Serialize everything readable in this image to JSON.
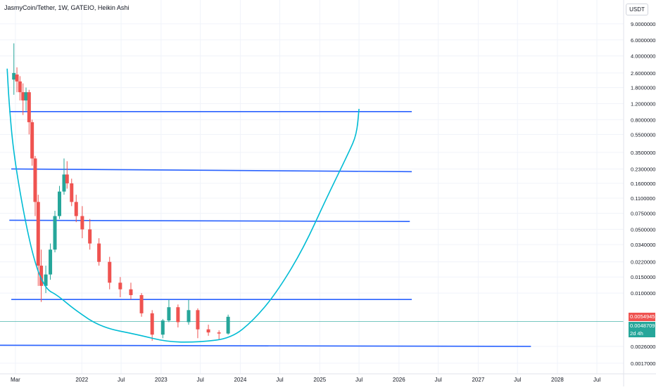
{
  "header": {
    "title": "JasmyCoin/Tether, 1W, GATEIO, Heikin Ashi",
    "currency": "USDT"
  },
  "price_labels": {
    "last_price": "0.0054945",
    "secondary_price": "0.0048709",
    "countdown": "2d 4h"
  },
  "colors": {
    "up": "#26a69a",
    "down": "#ef5350",
    "trendline": "#2962ff",
    "cup_curve": "#00bcd4",
    "last_price_bg": "#ef5350",
    "secondary_bg": "#26a69a"
  },
  "chart_data": {
    "type": "candlestick",
    "title": "JasmyCoin/Tether, 1W, GATEIO, Heikin Ashi",
    "y_scale": "log",
    "ylim": [
      0.0013,
      10
    ],
    "y_ticks": [
      "9.0000000",
      "6.0000000",
      "4.0000000",
      "2.6000000",
      "1.8000000",
      "1.2000000",
      "0.8000000",
      "0.5500000",
      "0.3500000",
      "0.2300000",
      "0.1600000",
      "0.1100000",
      "0.0750000",
      "0.0500000",
      "0.0340000",
      "0.0220000",
      "0.0150000",
      "0.0100000",
      "0.0026000",
      "0.0017000"
    ],
    "x_ticks": [
      "Mar",
      "2022",
      "Jul",
      "2023",
      "Jul",
      "2024",
      "Jul",
      "2025",
      "Jul",
      "2026",
      "Jul",
      "2027",
      "Jul",
      "2028",
      "Jul"
    ],
    "xlim": [
      "2020-12-20",
      "2028-11-01"
    ],
    "candles": [
      {
        "date": "2021-02-22",
        "open": 2.2,
        "high": 5.5,
        "low": 1.5,
        "close": 2.6
      },
      {
        "date": "2021-03-08",
        "open": 2.5,
        "high": 3.0,
        "low": 1.6,
        "close": 2.1
      },
      {
        "date": "2021-03-22",
        "open": 2.1,
        "high": 2.4,
        "low": 1.3,
        "close": 1.6
      },
      {
        "date": "2021-04-05",
        "open": 1.6,
        "high": 2.0,
        "low": 0.9,
        "close": 1.3
      },
      {
        "date": "2021-04-19",
        "open": 1.3,
        "high": 1.8,
        "low": 1.0,
        "close": 1.6
      },
      {
        "date": "2021-05-03",
        "open": 1.6,
        "high": 1.7,
        "low": 0.55,
        "close": 0.75
      },
      {
        "date": "2021-05-17",
        "open": 0.75,
        "high": 0.8,
        "low": 0.25,
        "close": 0.3
      },
      {
        "date": "2021-05-31",
        "open": 0.3,
        "high": 0.32,
        "low": 0.07,
        "close": 0.1
      },
      {
        "date": "2021-06-14",
        "open": 0.1,
        "high": 0.12,
        "low": 0.012,
        "close": 0.02
      },
      {
        "date": "2021-06-28",
        "open": 0.02,
        "high": 0.03,
        "low": 0.008,
        "close": 0.012
      },
      {
        "date": "2021-07-19",
        "open": 0.012,
        "high": 0.02,
        "low": 0.01,
        "close": 0.016
      },
      {
        "date": "2021-08-09",
        "open": 0.016,
        "high": 0.035,
        "low": 0.014,
        "close": 0.03
      },
      {
        "date": "2021-08-30",
        "open": 0.03,
        "high": 0.08,
        "low": 0.028,
        "close": 0.07
      },
      {
        "date": "2021-09-20",
        "open": 0.07,
        "high": 0.15,
        "low": 0.065,
        "close": 0.13
      },
      {
        "date": "2021-10-11",
        "open": 0.13,
        "high": 0.3,
        "low": 0.12,
        "close": 0.2
      },
      {
        "date": "2021-10-25",
        "open": 0.2,
        "high": 0.28,
        "low": 0.14,
        "close": 0.16
      },
      {
        "date": "2021-11-15",
        "open": 0.16,
        "high": 0.18,
        "low": 0.09,
        "close": 0.1
      },
      {
        "date": "2021-12-06",
        "open": 0.1,
        "high": 0.12,
        "low": 0.06,
        "close": 0.07
      },
      {
        "date": "2022-01-03",
        "open": 0.07,
        "high": 0.09,
        "low": 0.04,
        "close": 0.05
      },
      {
        "date": "2022-02-07",
        "open": 0.05,
        "high": 0.065,
        "low": 0.03,
        "close": 0.035
      },
      {
        "date": "2022-03-21",
        "open": 0.035,
        "high": 0.04,
        "low": 0.02,
        "close": 0.022
      },
      {
        "date": "2022-05-09",
        "open": 0.022,
        "high": 0.025,
        "low": 0.011,
        "close": 0.013
      },
      {
        "date": "2022-06-27",
        "open": 0.013,
        "high": 0.015,
        "low": 0.009,
        "close": 0.011
      },
      {
        "date": "2022-08-15",
        "open": 0.011,
        "high": 0.013,
        "low": 0.0085,
        "close": 0.0095
      },
      {
        "date": "2022-10-03",
        "open": 0.0095,
        "high": 0.01,
        "low": 0.0055,
        "close": 0.006
      },
      {
        "date": "2022-11-21",
        "open": 0.006,
        "high": 0.0065,
        "low": 0.003,
        "close": 0.0035
      },
      {
        "date": "2023-01-09",
        "open": 0.0035,
        "high": 0.0052,
        "low": 0.0032,
        "close": 0.005
      },
      {
        "date": "2023-02-06",
        "open": 0.005,
        "high": 0.0085,
        "low": 0.0048,
        "close": 0.007
      },
      {
        "date": "2023-03-20",
        "open": 0.007,
        "high": 0.0075,
        "low": 0.0042,
        "close": 0.0048
      },
      {
        "date": "2023-05-08",
        "open": 0.0048,
        "high": 0.0085,
        "low": 0.0045,
        "close": 0.0065
      },
      {
        "date": "2023-06-19",
        "open": 0.0065,
        "high": 0.0068,
        "low": 0.0032,
        "close": 0.004
      },
      {
        "date": "2023-08-07",
        "open": 0.004,
        "high": 0.0045,
        "low": 0.0034,
        "close": 0.0037
      },
      {
        "date": "2023-09-25",
        "open": 0.0037,
        "high": 0.0039,
        "low": 0.0031,
        "close": 0.0036
      },
      {
        "date": "2023-11-06",
        "open": 0.0036,
        "high": 0.0058,
        "low": 0.0035,
        "close": 0.0054945
      }
    ],
    "horizontal_lines": [
      {
        "from": "2021-02-01",
        "to": "2026-03-01",
        "y1": 0.98,
        "y2": 0.98
      },
      {
        "from": "2021-02-10",
        "to": "2026-03-01",
        "y1": 0.23,
        "y2": 0.215
      },
      {
        "from": "2021-02-01",
        "to": "2026-02-20",
        "y1": 0.063,
        "y2": 0.061
      },
      {
        "from": "2021-02-10",
        "to": "2026-03-01",
        "y1": 0.0085,
        "y2": 0.0085
      },
      {
        "from": "2019-02-01",
        "to": "2027-09-01",
        "y1": 0.0027,
        "y2": 0.0026
      }
    ],
    "cup_curve": [
      {
        "date": "2021-01-22",
        "y": 2.9
      },
      {
        "date": "2021-01-31",
        "y": 1.2
      },
      {
        "date": "2021-02-20",
        "y": 0.35
      },
      {
        "date": "2021-04-10",
        "y": 0.07
      },
      {
        "date": "2021-06-01",
        "y": 0.02
      },
      {
        "date": "2021-07-20",
        "y": 0.011
      },
      {
        "date": "2021-09-10",
        "y": 0.0095
      },
      {
        "date": "2021-12-01",
        "y": 0.0065
      },
      {
        "date": "2022-04-01",
        "y": 0.0042
      },
      {
        "date": "2022-09-15",
        "y": 0.0035
      },
      {
        "date": "2023-02-01",
        "y": 0.0029
      },
      {
        "date": "2023-07-01",
        "y": 0.0029
      },
      {
        "date": "2023-11-20",
        "y": 0.0032
      },
      {
        "date": "2024-03-01",
        "y": 0.005
      },
      {
        "date": "2024-06-15",
        "y": 0.01
      },
      {
        "date": "2024-10-15",
        "y": 0.03
      },
      {
        "date": "2025-02-01",
        "y": 0.11
      },
      {
        "date": "2025-05-15",
        "y": 0.35
      },
      {
        "date": "2025-06-20",
        "y": 0.55
      },
      {
        "date": "2025-07-01",
        "y": 1.05
      }
    ]
  }
}
